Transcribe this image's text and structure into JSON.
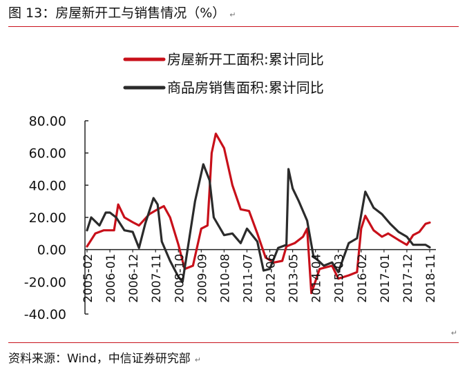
{
  "figure": {
    "title": "图 13：房屋新开工与销售情况（%）",
    "source": "资料来源：Wind，中信证券研究部"
  },
  "chart_data": {
    "type": "line",
    "title": "图 13：房屋新开工与销售情况（%）",
    "xlabel": "",
    "ylabel": "",
    "ylim": [
      -40,
      80
    ],
    "yticks": [
      "80.00",
      "60.00",
      "40.00",
      "20.00",
      "0.00",
      "-20.00",
      "-40.00"
    ],
    "xticks": [
      "2005-02",
      "2006-01",
      "2006-12",
      "2007-11",
      "2008-10",
      "2009-09",
      "2010-08",
      "2011-07",
      "2012-06",
      "2013-05",
      "2014-04",
      "2015-03",
      "2016-02",
      "2017-01",
      "2017-12",
      "2018-11"
    ],
    "grid": false,
    "legend_position": "top-center",
    "series": [
      {
        "name": "房屋新开工面积:累计同比",
        "color": "#c8101a",
        "points": [
          [
            "2005-02",
            2
          ],
          [
            "2005-06",
            10
          ],
          [
            "2005-10",
            12
          ],
          [
            "2006-01",
            12
          ],
          [
            "2006-03",
            12
          ],
          [
            "2006-05",
            28
          ],
          [
            "2006-08",
            20
          ],
          [
            "2006-12",
            17
          ],
          [
            "2007-03",
            15
          ],
          [
            "2007-08",
            22
          ],
          [
            "2007-12",
            25
          ],
          [
            "2008-03",
            27
          ],
          [
            "2008-06",
            20
          ],
          [
            "2008-10",
            3
          ],
          [
            "2009-01",
            -12
          ],
          [
            "2009-05",
            -10
          ],
          [
            "2009-09",
            13
          ],
          [
            "2009-12",
            15
          ],
          [
            "2010-02",
            60
          ],
          [
            "2010-04",
            72
          ],
          [
            "2010-08",
            63
          ],
          [
            "2010-12",
            40
          ],
          [
            "2011-04",
            25
          ],
          [
            "2011-08",
            24
          ],
          [
            "2011-12",
            10
          ],
          [
            "2012-04",
            -5
          ],
          [
            "2012-08",
            -8
          ],
          [
            "2012-12",
            -7
          ],
          [
            "2013-02",
            2
          ],
          [
            "2013-06",
            4
          ],
          [
            "2013-10",
            8
          ],
          [
            "2013-12",
            13
          ],
          [
            "2014-02",
            -27
          ],
          [
            "2014-06",
            -12
          ],
          [
            "2014-12",
            -10
          ],
          [
            "2015-03",
            -18
          ],
          [
            "2015-08",
            -16
          ],
          [
            "2015-12",
            -14
          ],
          [
            "2016-02",
            13
          ],
          [
            "2016-04",
            21
          ],
          [
            "2016-08",
            12
          ],
          [
            "2016-12",
            8
          ],
          [
            "2017-03",
            10
          ],
          [
            "2017-08",
            6
          ],
          [
            "2017-12",
            3
          ],
          [
            "2018-03",
            9
          ],
          [
            "2018-06",
            11
          ],
          [
            "2018-09",
            16
          ],
          [
            "2018-11",
            16.8
          ]
        ]
      },
      {
        "name": "商品房销售面积:累计同比",
        "color": "#2b2b2b",
        "points": [
          [
            "2005-02",
            12
          ],
          [
            "2005-04",
            20
          ],
          [
            "2005-08",
            15
          ],
          [
            "2005-11",
            23
          ],
          [
            "2006-01",
            23
          ],
          [
            "2006-04",
            20
          ],
          [
            "2006-08",
            12
          ],
          [
            "2006-12",
            11
          ],
          [
            "2007-03",
            1
          ],
          [
            "2007-06",
            16
          ],
          [
            "2007-10",
            32
          ],
          [
            "2007-12",
            28
          ],
          [
            "2008-02",
            5
          ],
          [
            "2008-06",
            -7
          ],
          [
            "2008-10",
            -17
          ],
          [
            "2008-12",
            -20
          ],
          [
            "2009-03",
            5
          ],
          [
            "2009-06",
            30
          ],
          [
            "2009-10",
            53
          ],
          [
            "2010-01",
            43
          ],
          [
            "2010-03",
            20
          ],
          [
            "2010-08",
            9
          ],
          [
            "2010-12",
            10
          ],
          [
            "2011-04",
            4
          ],
          [
            "2011-07",
            13
          ],
          [
            "2011-12",
            5
          ],
          [
            "2012-03",
            -13
          ],
          [
            "2012-06",
            -12
          ],
          [
            "2012-10",
            1
          ],
          [
            "2013-02",
            3
          ],
          [
            "2013-03",
            50
          ],
          [
            "2013-05",
            38
          ],
          [
            "2013-08",
            30
          ],
          [
            "2013-12",
            18
          ],
          [
            "2014-03",
            -4
          ],
          [
            "2014-08",
            -10
          ],
          [
            "2014-12",
            -8
          ],
          [
            "2015-03",
            -14
          ],
          [
            "2015-08",
            4
          ],
          [
            "2015-12",
            7
          ],
          [
            "2016-04",
            36
          ],
          [
            "2016-08",
            26
          ],
          [
            "2016-12",
            22
          ],
          [
            "2017-04",
            16
          ],
          [
            "2017-08",
            11
          ],
          [
            "2017-12",
            8
          ],
          [
            "2018-03",
            3
          ],
          [
            "2018-06",
            3
          ],
          [
            "2018-09",
            3
          ],
          [
            "2018-11",
            1.4
          ]
        ]
      }
    ]
  },
  "marks": {
    "para_mark": "↵"
  }
}
